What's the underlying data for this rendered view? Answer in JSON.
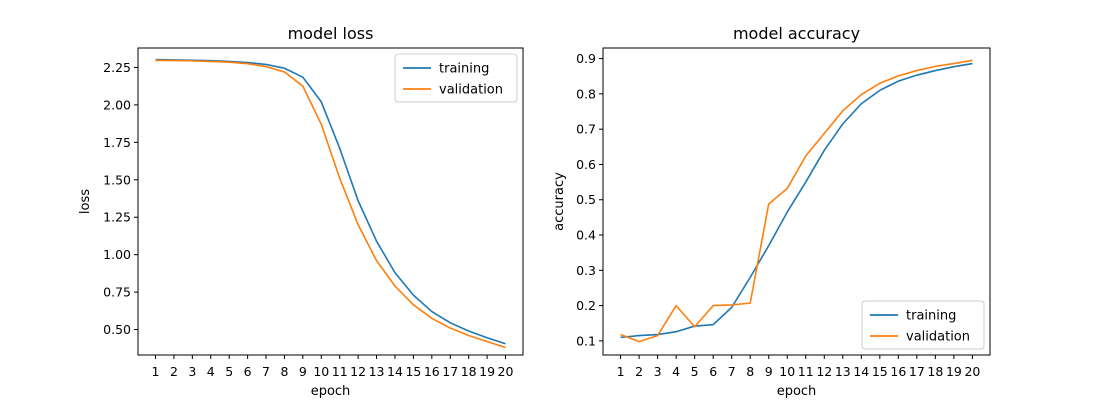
{
  "colors": {
    "training": "#1f77b4",
    "validation": "#ff7f0e"
  },
  "chart_data": [
    {
      "type": "line",
      "title": "model loss",
      "xlabel": "epoch",
      "ylabel": "loss",
      "x": [
        1,
        2,
        3,
        4,
        5,
        6,
        7,
        8,
        9,
        10,
        11,
        12,
        13,
        14,
        15,
        16,
        17,
        18,
        19,
        20
      ],
      "xlim": [
        0.05,
        20.95
      ],
      "ylim": [
        0.33,
        2.38
      ],
      "yticks": [
        0.5,
        0.75,
        1.0,
        1.25,
        1.5,
        1.75,
        2.0,
        2.25
      ],
      "ytick_labels": [
        "0.50",
        "0.75",
        "1.00",
        "1.25",
        "1.50",
        "1.75",
        "2.00",
        "2.25"
      ],
      "legend_loc": "upper right",
      "grid": false,
      "series": [
        {
          "name": "training",
          "color": "#1f77b4",
          "values": [
            2.303,
            2.3,
            2.298,
            2.295,
            2.29,
            2.283,
            2.27,
            2.245,
            2.185,
            2.02,
            1.71,
            1.36,
            1.09,
            0.88,
            0.73,
            0.62,
            0.545,
            0.49,
            0.445,
            0.405
          ]
        },
        {
          "name": "validation",
          "color": "#ff7f0e",
          "values": [
            2.298,
            2.296,
            2.294,
            2.29,
            2.285,
            2.275,
            2.256,
            2.22,
            2.125,
            1.87,
            1.51,
            1.2,
            0.96,
            0.79,
            0.665,
            0.575,
            0.51,
            0.46,
            0.42,
            0.38
          ]
        }
      ]
    },
    {
      "type": "line",
      "title": "model accuracy",
      "xlabel": "epoch",
      "ylabel": "accuracy",
      "x": [
        1,
        2,
        3,
        4,
        5,
        6,
        7,
        8,
        9,
        10,
        11,
        12,
        13,
        14,
        15,
        16,
        17,
        18,
        19,
        20
      ],
      "xlim": [
        0.05,
        20.95
      ],
      "ylim": [
        0.06,
        0.93
      ],
      "yticks": [
        0.1,
        0.2,
        0.3,
        0.4,
        0.5,
        0.6,
        0.7,
        0.8,
        0.9
      ],
      "ytick_labels": [
        "0.1",
        "0.2",
        "0.3",
        "0.4",
        "0.5",
        "0.6",
        "0.7",
        "0.8",
        "0.9"
      ],
      "legend_loc": "lower right",
      "grid": false,
      "series": [
        {
          "name": "training",
          "color": "#1f77b4",
          "values": [
            0.11,
            0.115,
            0.118,
            0.126,
            0.142,
            0.146,
            0.195,
            0.28,
            0.37,
            0.465,
            0.55,
            0.64,
            0.715,
            0.772,
            0.81,
            0.836,
            0.853,
            0.866,
            0.877,
            0.886
          ]
        },
        {
          "name": "validation",
          "color": "#ff7f0e",
          "values": [
            0.118,
            0.098,
            0.115,
            0.2,
            0.14,
            0.2,
            0.202,
            0.207,
            0.488,
            0.532,
            0.624,
            0.688,
            0.752,
            0.798,
            0.83,
            0.851,
            0.866,
            0.878,
            0.886,
            0.895
          ]
        }
      ]
    }
  ]
}
